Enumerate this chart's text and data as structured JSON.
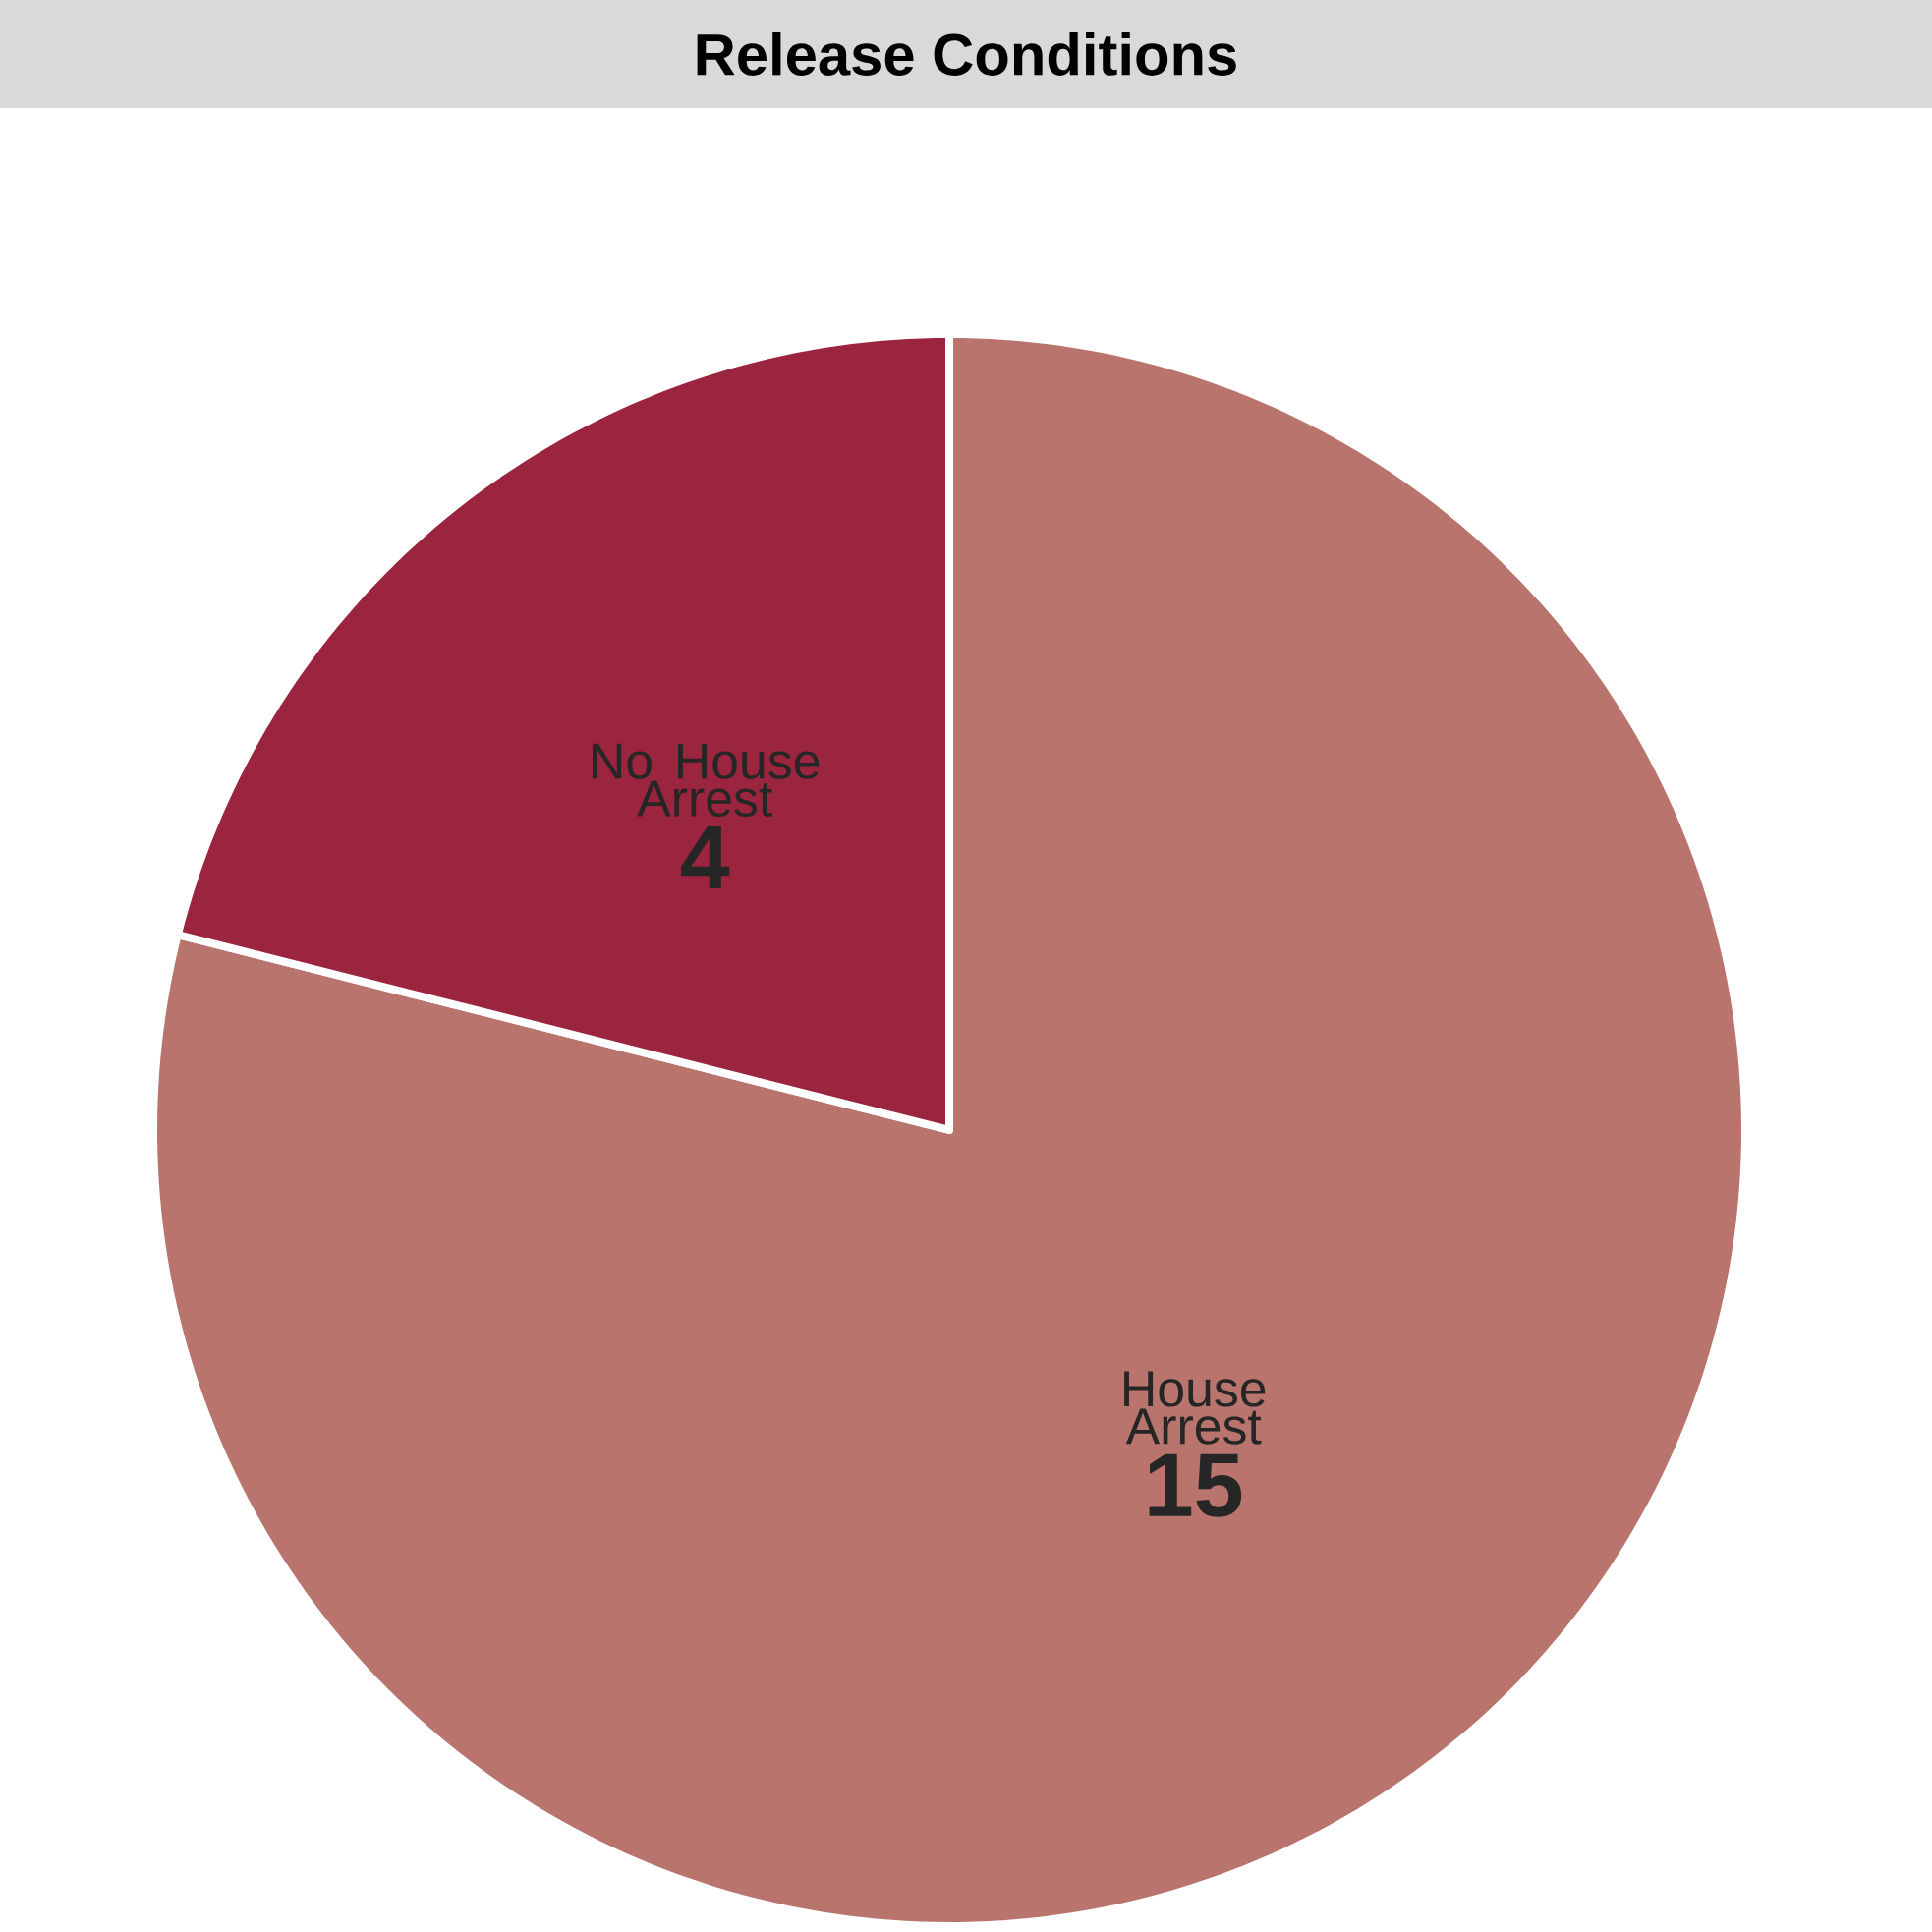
{
  "chart_data": {
    "type": "pie",
    "title": "Release Conditions",
    "categories": [
      "House Arrest",
      "No House Arrest"
    ],
    "values": [
      15,
      4
    ],
    "value_labels": [
      "15",
      "4"
    ],
    "colors": [
      "#b9756d",
      "#9b243e"
    ]
  }
}
